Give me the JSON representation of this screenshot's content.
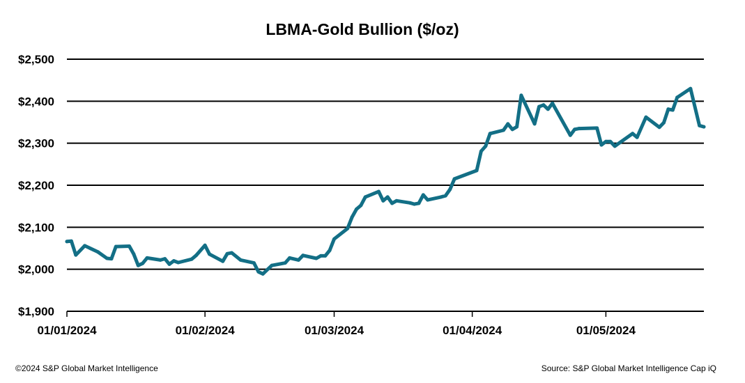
{
  "chart_data": {
    "type": "line",
    "title": "LBMA-Gold Bullion ($/oz)",
    "xlabel": "",
    "ylabel": "",
    "ylim": [
      1900,
      2500
    ],
    "xlim": [
      "2024-01-01",
      "2024-05-23"
    ],
    "grid": true,
    "legend": "none",
    "line_color": "#136f86",
    "y_ticks": [
      1900,
      2000,
      2100,
      2200,
      2300,
      2400,
      2500
    ],
    "y_tick_labels": [
      "$1,900",
      "$2,000",
      "$2,100",
      "$2,200",
      "$2,300",
      "$2,400",
      "$2,500"
    ],
    "x_ticks": [
      "2024-01-01",
      "2024-02-01",
      "2024-03-01",
      "2024-04-01",
      "2024-05-01"
    ],
    "x_tick_labels": [
      "01/01/2024",
      "01/02/2024",
      "01/03/2024",
      "01/04/2024",
      "01/05/2024"
    ],
    "series": [
      {
        "x": [
          "2024-01-01",
          "2024-01-02",
          "2024-01-03",
          "2024-01-05",
          "2024-01-08",
          "2024-01-10",
          "2024-01-11",
          "2024-01-12",
          "2024-01-15",
          "2024-01-16",
          "2024-01-17",
          "2024-01-18",
          "2024-01-19",
          "2024-01-22",
          "2024-01-23",
          "2024-01-24",
          "2024-01-25",
          "2024-01-26",
          "2024-01-29",
          "2024-01-30",
          "2024-02-01",
          "2024-02-02",
          "2024-02-05",
          "2024-02-06",
          "2024-02-07",
          "2024-02-09",
          "2024-02-12",
          "2024-02-13",
          "2024-02-14",
          "2024-02-16",
          "2024-02-19",
          "2024-02-20",
          "2024-02-22",
          "2024-02-23",
          "2024-02-26",
          "2024-02-27",
          "2024-02-28",
          "2024-02-29",
          "2024-03-01",
          "2024-03-04",
          "2024-03-05",
          "2024-03-06",
          "2024-03-07",
          "2024-03-08",
          "2024-03-11",
          "2024-03-12",
          "2024-03-13",
          "2024-03-14",
          "2024-03-15",
          "2024-03-18",
          "2024-03-19",
          "2024-03-20",
          "2024-03-21",
          "2024-03-22",
          "2024-03-25",
          "2024-03-26",
          "2024-03-27",
          "2024-03-28",
          "2024-04-02",
          "2024-04-03",
          "2024-04-04",
          "2024-04-05",
          "2024-04-08",
          "2024-04-09",
          "2024-04-10",
          "2024-04-11",
          "2024-04-12",
          "2024-04-15",
          "2024-04-16",
          "2024-04-17",
          "2024-04-18",
          "2024-04-19",
          "2024-04-23",
          "2024-04-24",
          "2024-04-25",
          "2024-04-29",
          "2024-04-30",
          "2024-05-01",
          "2024-05-02",
          "2024-05-03",
          "2024-05-07",
          "2024-05-08",
          "2024-05-10",
          "2024-05-13",
          "2024-05-14",
          "2024-05-15",
          "2024-05-16",
          "2024-05-17",
          "2024-05-20",
          "2024-05-22",
          "2024-05-23"
        ],
        "values": [
          2066,
          2067,
          2034,
          2056,
          2041,
          2026,
          2025,
          2054,
          2055,
          2036,
          2009,
          2014,
          2027,
          2022,
          2025,
          2012,
          2020,
          2016,
          2024,
          2033,
          2057,
          2036,
          2019,
          2037,
          2039,
          2022,
          2015,
          1994,
          1989,
          2009,
          2015,
          2027,
          2022,
          2033,
          2026,
          2032,
          2032,
          2045,
          2072,
          2097,
          2124,
          2143,
          2152,
          2172,
          2185,
          2163,
          2172,
          2157,
          2163,
          2158,
          2155,
          2157,
          2177,
          2165,
          2172,
          2175,
          2190,
          2215,
          2235,
          2281,
          2293,
          2323,
          2331,
          2346,
          2333,
          2339,
          2414,
          2346,
          2387,
          2391,
          2381,
          2395,
          2319,
          2333,
          2335,
          2336,
          2296,
          2304,
          2304,
          2293,
          2323,
          2314,
          2362,
          2338,
          2349,
          2381,
          2379,
          2409,
          2430,
          2342,
          2339
        ]
      }
    ]
  },
  "footer": {
    "copyright": "©2024 S&P Global Market Intelligence",
    "source": "Source: S&P Global Market Intelligence Cap iQ"
  }
}
